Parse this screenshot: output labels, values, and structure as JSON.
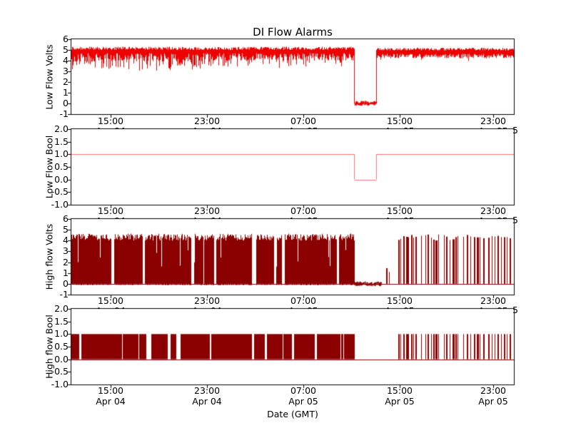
{
  "title": "DI Flow Alarms",
  "xlabel": "Date (GMT)",
  "x_ticks": {
    "times": [
      "15:00",
      "23:00",
      "07:00",
      "15:00",
      "23:00"
    ],
    "dates": [
      "Apr 04",
      "Apr 04",
      "Apr 05",
      "Apr 05",
      "Apr 05"
    ],
    "fractions": [
      0.0887,
      0.3065,
      0.5242,
      0.7419,
      0.9532
    ],
    "right_clip_label": "5"
  },
  "chart_data": [
    {
      "type": "line",
      "ylabel": "Low Flow Volts",
      "ylim": [
        -1,
        6
      ],
      "yticks": [
        6,
        5,
        4,
        3,
        2,
        1,
        0,
        -1
      ],
      "ytick_labels": [
        "6",
        "5",
        "4",
        "3",
        "2",
        "1",
        "0",
        "-1"
      ],
      "color": "#ee0000",
      "grid": false,
      "segments": [
        {
          "kind": "noisy_band",
          "t0": 0.0,
          "t1": 0.3,
          "base": 4.95,
          "top_jitter": 0.3,
          "body": 0.8,
          "deep_prob": 0.3,
          "deep_min": 3.05,
          "deep_max": 4.0
        },
        {
          "kind": "noisy_band",
          "t0": 0.3,
          "t1": 0.64,
          "base": 4.95,
          "top_jitter": 0.3,
          "body": 0.7,
          "deep_prob": 0.18,
          "deep_min": 3.3,
          "deep_max": 4.1
        },
        {
          "kind": "flat_noise",
          "t0": 0.64,
          "t1": 0.689,
          "value": 0.0,
          "jitter": 0.15
        },
        {
          "kind": "noisy_band",
          "t0": 0.689,
          "t1": 1.0,
          "base": 4.9,
          "top_jitter": 0.25,
          "body": 0.45,
          "deep_prob": 0.06,
          "deep_min": 3.9,
          "deep_max": 4.3
        }
      ]
    },
    {
      "type": "line",
      "ylabel": "Low Flow Bool",
      "ylim": [
        -1,
        2
      ],
      "yticks": [
        2.0,
        1.5,
        1.0,
        0.5,
        0.0,
        -0.5,
        -1.0
      ],
      "ytick_labels": [
        "2.0",
        "1.5",
        "1.0",
        "0.5",
        "0.0",
        "-0.5",
        "-1.0"
      ],
      "color": "#ff7070",
      "grid": false,
      "segments": [
        {
          "kind": "flat",
          "t0": 0.0,
          "t1": 0.64,
          "value": 1.0
        },
        {
          "kind": "flat",
          "t0": 0.64,
          "t1": 0.689,
          "value": 0.0
        },
        {
          "kind": "flat",
          "t0": 0.689,
          "t1": 1.0,
          "value": 1.0
        }
      ]
    },
    {
      "type": "line",
      "ylabel": "High flow Volts",
      "ylim": [
        -1,
        6
      ],
      "yticks": [
        6,
        5,
        4,
        3,
        2,
        1,
        0,
        -1
      ],
      "ytick_labels": [
        "6",
        "5",
        "4",
        "3",
        "2",
        "1",
        "0",
        "-1"
      ],
      "color": "#8b0000",
      "grid": false,
      "segments": [
        {
          "kind": "dense_pulses",
          "t0": 0.0,
          "t1": 0.64,
          "lo": 0.0,
          "hi_min": 4.0,
          "hi_max": 4.65,
          "gap_prob": 0.3,
          "short_prob": 0.05,
          "neg_dip": 0.12
        },
        {
          "kind": "flat_noise",
          "t0": 0.64,
          "t1": 0.7,
          "value": 0.0,
          "jitter": 0.13
        },
        {
          "kind": "sparse_pulses",
          "t0": 0.7,
          "t1": 1.0,
          "lo": 0.0,
          "hi_min": 4.0,
          "hi_max": 4.6,
          "events": [
            [
              0.712,
              2,
              1.45
            ],
            [
              0.719,
              1,
              1.1
            ],
            [
              0.74,
              2
            ],
            [
              0.745,
              1
            ],
            [
              0.751,
              2
            ],
            [
              0.757,
              3
            ],
            [
              0.762,
              1
            ],
            [
              0.768,
              2
            ],
            [
              0.774,
              1
            ],
            [
              0.779,
              2
            ],
            [
              0.791,
              1
            ],
            [
              0.8,
              1
            ],
            [
              0.806,
              2
            ],
            [
              0.813,
              1
            ],
            [
              0.818,
              2
            ],
            [
              0.824,
              3
            ],
            [
              0.83,
              1
            ],
            [
              0.842,
              1
            ],
            [
              0.848,
              2
            ],
            [
              0.855,
              1
            ],
            [
              0.862,
              3
            ],
            [
              0.868,
              2
            ],
            [
              0.874,
              1
            ],
            [
              0.887,
              1
            ],
            [
              0.895,
              2
            ],
            [
              0.903,
              1
            ],
            [
              0.91,
              2
            ],
            [
              0.917,
              3
            ],
            [
              0.924,
              1
            ],
            [
              0.931,
              2
            ],
            [
              0.943,
              2
            ],
            [
              0.95,
              1
            ],
            [
              0.957,
              1
            ],
            [
              0.964,
              2
            ],
            [
              0.971,
              1
            ],
            [
              0.978,
              2
            ],
            [
              0.985,
              1
            ],
            [
              0.991,
              2
            ]
          ]
        }
      ]
    },
    {
      "type": "line",
      "ylabel": "High flow Bool",
      "ylim": [
        -1,
        2
      ],
      "yticks": [
        2.0,
        1.5,
        1.0,
        0.5,
        0.0,
        -0.5,
        -1.0
      ],
      "ytick_labels": [
        "2.0",
        "1.5",
        "1.0",
        "0.5",
        "0.0",
        "-0.5",
        "-1.0"
      ],
      "color": "#8b0000",
      "grid": false,
      "segments": [
        {
          "kind": "dense_pulses",
          "t0": 0.0,
          "t1": 0.64,
          "lo": 0.0,
          "hi_min": 1.0,
          "hi_max": 1.0,
          "gap_prob": 0.3,
          "short_prob": 0,
          "neg_dip": 0
        },
        {
          "kind": "flat",
          "t0": 0.64,
          "t1": 0.7,
          "value": 0.0
        },
        {
          "kind": "sparse_pulses",
          "t0": 0.7,
          "t1": 1.0,
          "lo": 0.0,
          "hi_min": 1.0,
          "hi_max": 1.0,
          "events": [
            [
              0.74,
              2
            ],
            [
              0.745,
              1
            ],
            [
              0.751,
              2
            ],
            [
              0.757,
              3
            ],
            [
              0.762,
              1
            ],
            [
              0.768,
              2
            ],
            [
              0.774,
              1
            ],
            [
              0.779,
              2
            ],
            [
              0.791,
              1
            ],
            [
              0.8,
              1
            ],
            [
              0.806,
              2
            ],
            [
              0.813,
              1
            ],
            [
              0.818,
              2
            ],
            [
              0.824,
              3
            ],
            [
              0.83,
              1
            ],
            [
              0.842,
              1
            ],
            [
              0.848,
              2
            ],
            [
              0.855,
              1
            ],
            [
              0.862,
              3
            ],
            [
              0.868,
              2
            ],
            [
              0.874,
              1
            ],
            [
              0.887,
              1
            ],
            [
              0.895,
              2
            ],
            [
              0.903,
              1
            ],
            [
              0.91,
              2
            ],
            [
              0.917,
              3
            ],
            [
              0.924,
              1
            ],
            [
              0.931,
              2
            ],
            [
              0.943,
              2
            ],
            [
              0.95,
              1
            ],
            [
              0.957,
              1
            ],
            [
              0.964,
              2
            ],
            [
              0.971,
              1
            ],
            [
              0.978,
              2
            ],
            [
              0.985,
              1
            ],
            [
              0.991,
              2
            ]
          ]
        }
      ]
    }
  ]
}
